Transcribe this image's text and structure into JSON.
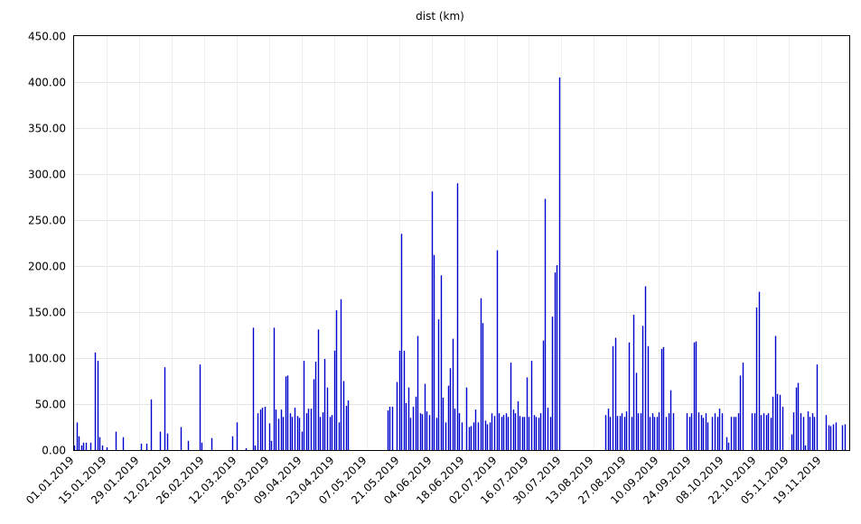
{
  "chart_data": {
    "type": "bar",
    "title": "dist (km)",
    "xlabel": "",
    "ylabel": "",
    "ylim": [
      0,
      450
    ],
    "yticks": [
      "0.00",
      "50.00",
      "100.00",
      "150.00",
      "200.00",
      "250.00",
      "300.00",
      "350.00",
      "400.00",
      "450.00"
    ],
    "x_start": "01.01.2019",
    "x_end": "01.12.2019",
    "xticks": [
      "01.01.2019",
      "15.01.2019",
      "29.01.2019",
      "12.02.2019",
      "26.02.2019",
      "12.03.2019",
      "26.03.2019",
      "09.04.2019",
      "23.04.2019",
      "07.05.2019",
      "21.05.2019",
      "04.06.2019",
      "18.06.2019",
      "02.07.2019",
      "16.07.2019",
      "30.07.2019",
      "13.08.2019",
      "27.08.2019",
      "10.09.2019",
      "24.09.2019",
      "08.10.2019",
      "22.10.2019",
      "05.11.2019",
      "19.11.2019"
    ],
    "grid": true,
    "bar_color": "#0000cc",
    "series": [
      {
        "points": [
          [
            "01.01.2019",
            5
          ],
          [
            "02.01.2019",
            30
          ],
          [
            "03.01.2019",
            15
          ],
          [
            "04.01.2019",
            5
          ],
          [
            "05.01.2019",
            8
          ],
          [
            "06.01.2019",
            8
          ],
          [
            "08.01.2019",
            8
          ],
          [
            "10.01.2019",
            106
          ],
          [
            "11.01.2019",
            97
          ],
          [
            "12.01.2019",
            14
          ],
          [
            "13.01.2019",
            5
          ],
          [
            "15.01.2019",
            3
          ],
          [
            "19.01.2019",
            20
          ],
          [
            "22.01.2019",
            14
          ],
          [
            "30.01.2019",
            7
          ],
          [
            "01.02.2019",
            7
          ],
          [
            "03.02.2019",
            55
          ],
          [
            "07.02.2019",
            20
          ],
          [
            "09.02.2019",
            90
          ],
          [
            "10.02.2019",
            18
          ],
          [
            "16.02.2019",
            25
          ],
          [
            "19.02.2019",
            10
          ],
          [
            "24.02.2019",
            93
          ],
          [
            "25.02.2019",
            8
          ],
          [
            "29.02.2019",
            13
          ],
          [
            "10.03.2019",
            15
          ],
          [
            "12.03.2019",
            30
          ],
          [
            "16.03.2019",
            2
          ],
          [
            "19.03.2019",
            133
          ],
          [
            "20.03.2019",
            5
          ],
          [
            "21.03.2019",
            40
          ],
          [
            "22.03.2019",
            44
          ],
          [
            "23.03.2019",
            46
          ],
          [
            "24.03.2019",
            47
          ],
          [
            "26.03.2019",
            29
          ],
          [
            "27.03.2019",
            10
          ],
          [
            "28.03.2019",
            133
          ],
          [
            "29.03.2019",
            44
          ],
          [
            "30.03.2019",
            34
          ],
          [
            "31.03.2019",
            44
          ],
          [
            "01.04.2019",
            36
          ],
          [
            "02.04.2019",
            80
          ],
          [
            "03.04.2019",
            81
          ],
          [
            "04.04.2019",
            40
          ],
          [
            "05.04.2019",
            36
          ],
          [
            "06.04.2019",
            46
          ],
          [
            "07.04.2019",
            37
          ],
          [
            "08.04.2019",
            35
          ],
          [
            "09.04.2019",
            20
          ],
          [
            "10.04.2019",
            97
          ],
          [
            "11.04.2019",
            40
          ],
          [
            "12.04.2019",
            45
          ],
          [
            "13.04.2019",
            45
          ],
          [
            "14.04.2019",
            77
          ],
          [
            "15.04.2019",
            96
          ],
          [
            "16.04.2019",
            131
          ],
          [
            "17.04.2019",
            36
          ],
          [
            "18.04.2019",
            41
          ],
          [
            "19.04.2019",
            99
          ],
          [
            "20.04.2019",
            68
          ],
          [
            "21.04.2019",
            36
          ],
          [
            "22.04.2019",
            38
          ],
          [
            "23.04.2019",
            108
          ],
          [
            "24.04.2019",
            152
          ],
          [
            "25.04.2019",
            30
          ],
          [
            "26.04.2019",
            164
          ],
          [
            "27.04.2019",
            75
          ],
          [
            "28.04.2019",
            48
          ],
          [
            "29.04.2019",
            54
          ],
          [
            "16.05.2019",
            43
          ],
          [
            "17.05.2019",
            47
          ],
          [
            "18.05.2019",
            47
          ],
          [
            "20.05.2019",
            74
          ],
          [
            "21.05.2019",
            108
          ],
          [
            "22.05.2019",
            235
          ],
          [
            "23.05.2019",
            108
          ],
          [
            "24.05.2019",
            51
          ],
          [
            "25.05.2019",
            68
          ],
          [
            "26.05.2019",
            35
          ],
          [
            "27.05.2019",
            47
          ],
          [
            "28.05.2019",
            58
          ],
          [
            "29.05.2019",
            124
          ],
          [
            "30.05.2019",
            40
          ],
          [
            "31.05.2019",
            39
          ],
          [
            "01.06.2019",
            72
          ],
          [
            "02.06.2019",
            42
          ],
          [
            "03.06.2019",
            38
          ],
          [
            "04.06.2019",
            281
          ],
          [
            "05.06.2019",
            212
          ],
          [
            "06.06.2019",
            35
          ],
          [
            "07.06.2019",
            142
          ],
          [
            "08.06.2019",
            190
          ],
          [
            "09.06.2019",
            57
          ],
          [
            "10.06.2019",
            30
          ],
          [
            "11.06.2019",
            70
          ],
          [
            "12.06.2019",
            89
          ],
          [
            "13.06.2019",
            121
          ],
          [
            "14.06.2019",
            45
          ],
          [
            "15.06.2019",
            290
          ],
          [
            "16.06.2019",
            40
          ],
          [
            "17.06.2019",
            30
          ],
          [
            "19.06.2019",
            68
          ],
          [
            "20.06.2019",
            25
          ],
          [
            "21.06.2019",
            26
          ],
          [
            "22.06.2019",
            30
          ],
          [
            "23.06.2019",
            44
          ],
          [
            "24.06.2019",
            30
          ],
          [
            "25.06.2019",
            165
          ],
          [
            "26.06.2019",
            138
          ],
          [
            "27.06.2019",
            32
          ],
          [
            "28.06.2019",
            28
          ],
          [
            "29.06.2019",
            30
          ],
          [
            "30.06.2019",
            40
          ],
          [
            "01.07.2019",
            37
          ],
          [
            "02.07.2019",
            217
          ],
          [
            "03.07.2019",
            40
          ],
          [
            "04.07.2019",
            36
          ],
          [
            "05.07.2019",
            38
          ],
          [
            "06.07.2019",
            40
          ],
          [
            "07.07.2019",
            36
          ],
          [
            "08.07.2019",
            95
          ],
          [
            "09.07.2019",
            44
          ],
          [
            "10.07.2019",
            40
          ],
          [
            "11.07.2019",
            53
          ],
          [
            "12.07.2019",
            37
          ],
          [
            "13.07.2019",
            36
          ],
          [
            "14.07.2019",
            36
          ],
          [
            "15.07.2019",
            79
          ],
          [
            "16.07.2019",
            36
          ],
          [
            "17.07.2019",
            97
          ],
          [
            "18.07.2019",
            38
          ],
          [
            "19.07.2019",
            36
          ],
          [
            "20.07.2019",
            35
          ],
          [
            "21.07.2019",
            40
          ],
          [
            "22.07.2019",
            119
          ],
          [
            "23.07.2019",
            273
          ],
          [
            "24.07.2019",
            46
          ],
          [
            "25.07.2019",
            36
          ],
          [
            "26.07.2019",
            145
          ],
          [
            "27.07.2019",
            193
          ],
          [
            "28.07.2019",
            201
          ],
          [
            "29.07.2019",
            405
          ],
          [
            "18.08.2019",
            38
          ],
          [
            "19.08.2019",
            45
          ],
          [
            "20.08.2019",
            36
          ],
          [
            "21.08.2019",
            113
          ],
          [
            "22.08.2019",
            122
          ],
          [
            "23.08.2019",
            37
          ],
          [
            "24.08.2019",
            37
          ],
          [
            "25.08.2019",
            40
          ],
          [
            "26.08.2019",
            36
          ],
          [
            "27.08.2019",
            42
          ],
          [
            "28.08.2019",
            117
          ],
          [
            "29.08.2019",
            36
          ],
          [
            "30.08.2019",
            147
          ],
          [
            "31.08.2019",
            84
          ],
          [
            "01.09.2019",
            40
          ],
          [
            "02.09.2019",
            40
          ],
          [
            "03.09.2019",
            135
          ],
          [
            "04.09.2019",
            178
          ],
          [
            "05.09.2019",
            113
          ],
          [
            "06.09.2019",
            36
          ],
          [
            "07.09.2019",
            40
          ],
          [
            "08.09.2019",
            36
          ],
          [
            "09.09.2019",
            36
          ],
          [
            "10.09.2019",
            41
          ],
          [
            "11.09.2019",
            110
          ],
          [
            "12.09.2019",
            112
          ],
          [
            "13.09.2019",
            36
          ],
          [
            "14.09.2019",
            40
          ],
          [
            "15.09.2019",
            65
          ],
          [
            "16.09.2019",
            40
          ],
          [
            "22.09.2019",
            40
          ],
          [
            "23.09.2019",
            36
          ],
          [
            "24.09.2019",
            40
          ],
          [
            "25.09.2019",
            117
          ],
          [
            "26.09.2019",
            118
          ],
          [
            "27.09.2019",
            41
          ],
          [
            "28.09.2019",
            38
          ],
          [
            "29.09.2019",
            35
          ],
          [
            "30.09.2019",
            40
          ],
          [
            "01.10.2019",
            30
          ],
          [
            "03.10.2019",
            36
          ],
          [
            "04.10.2019",
            40
          ],
          [
            "05.10.2019",
            36
          ],
          [
            "06.10.2019",
            45
          ],
          [
            "07.10.2019",
            40
          ],
          [
            "09.10.2019",
            14
          ],
          [
            "10.10.2019",
            8
          ],
          [
            "11.10.2019",
            36
          ],
          [
            "12.10.2019",
            36
          ],
          [
            "13.10.2019",
            36
          ],
          [
            "14.10.2019",
            40
          ],
          [
            "15.10.2019",
            81
          ],
          [
            "16.10.2019",
            95
          ],
          [
            "20.10.2019",
            40
          ],
          [
            "21.10.2019",
            40
          ],
          [
            "22.10.2019",
            155
          ],
          [
            "23.10.2019",
            172
          ],
          [
            "24.10.2019",
            38
          ],
          [
            "25.10.2019",
            40
          ],
          [
            "26.10.2019",
            38
          ],
          [
            "27.10.2019",
            40
          ],
          [
            "28.10.2019",
            35
          ],
          [
            "29.10.2019",
            58
          ],
          [
            "30.10.2019",
            124
          ],
          [
            "31.10.2019",
            61
          ],
          [
            "01.11.2019",
            60
          ],
          [
            "02.11.2019",
            47
          ],
          [
            "06.11.2019",
            17
          ],
          [
            "07.11.2019",
            41
          ],
          [
            "08.11.2019",
            68
          ],
          [
            "09.11.2019",
            73
          ],
          [
            "10.11.2019",
            40
          ],
          [
            "11.11.2019",
            36
          ],
          [
            "12.11.2019",
            5
          ],
          [
            "13.11.2019",
            42
          ],
          [
            "14.11.2019",
            36
          ],
          [
            "15.11.2019",
            40
          ],
          [
            "16.11.2019",
            36
          ],
          [
            "17.11.2019",
            93
          ],
          [
            "21.11.2019",
            38
          ],
          [
            "22.11.2019",
            27
          ],
          [
            "23.11.2019",
            26
          ],
          [
            "24.11.2019",
            28
          ],
          [
            "25.11.2019",
            30
          ],
          [
            "28.11.2019",
            27
          ],
          [
            "29.11.2019",
            28
          ]
        ]
      }
    ]
  }
}
